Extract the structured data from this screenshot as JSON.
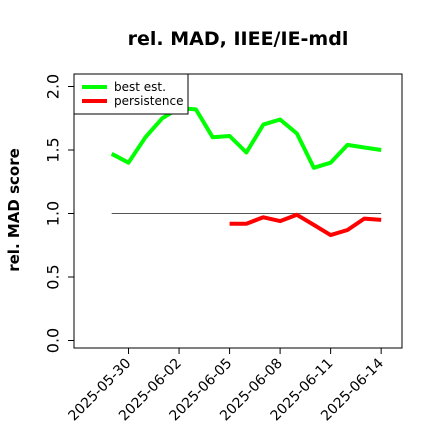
{
  "chart_data": {
    "type": "line",
    "title": "rel. MAD, IIEE/IE-mdl",
    "xlabel": "",
    "ylabel": "rel. MAD score",
    "ylim": [
      0.0,
      2.0
    ],
    "yticks": [
      "0.0",
      "0.5",
      "1.0",
      "1.5",
      "2.0"
    ],
    "xlim": [
      "2025-05-27",
      "2025-06-15"
    ],
    "xticks": [
      "2025-05-30",
      "2025-06-02",
      "2025-06-05",
      "2025-06-08",
      "2025-06-11",
      "2025-06-14"
    ],
    "reference_line": 1.0,
    "legend_position": "top-left",
    "series": [
      {
        "name": "best est.",
        "color": "#00ff00",
        "x": [
          "2025-05-29",
          "2025-05-30",
          "2025-05-31",
          "2025-06-01",
          "2025-06-02",
          "2025-06-03",
          "2025-06-04",
          "2025-06-05",
          "2025-06-06",
          "2025-06-07",
          "2025-06-08",
          "2025-06-09",
          "2025-06-10",
          "2025-06-11",
          "2025-06-12",
          "2025-06-13",
          "2025-06-14"
        ],
        "values": [
          1.47,
          1.4,
          1.6,
          1.75,
          1.83,
          1.82,
          1.6,
          1.61,
          1.48,
          1.7,
          1.74,
          1.63,
          1.36,
          1.4,
          1.54,
          1.52,
          1.5
        ]
      },
      {
        "name": "persistence",
        "color": "#ff0000",
        "x": [
          "2025-06-05",
          "2025-06-06",
          "2025-06-07",
          "2025-06-08",
          "2025-06-09",
          "2025-06-10",
          "2025-06-11",
          "2025-06-12",
          "2025-06-13",
          "2025-06-14"
        ],
        "values": [
          0.92,
          0.92,
          0.97,
          0.94,
          0.99,
          0.91,
          0.83,
          0.87,
          0.96,
          0.95
        ]
      }
    ]
  }
}
